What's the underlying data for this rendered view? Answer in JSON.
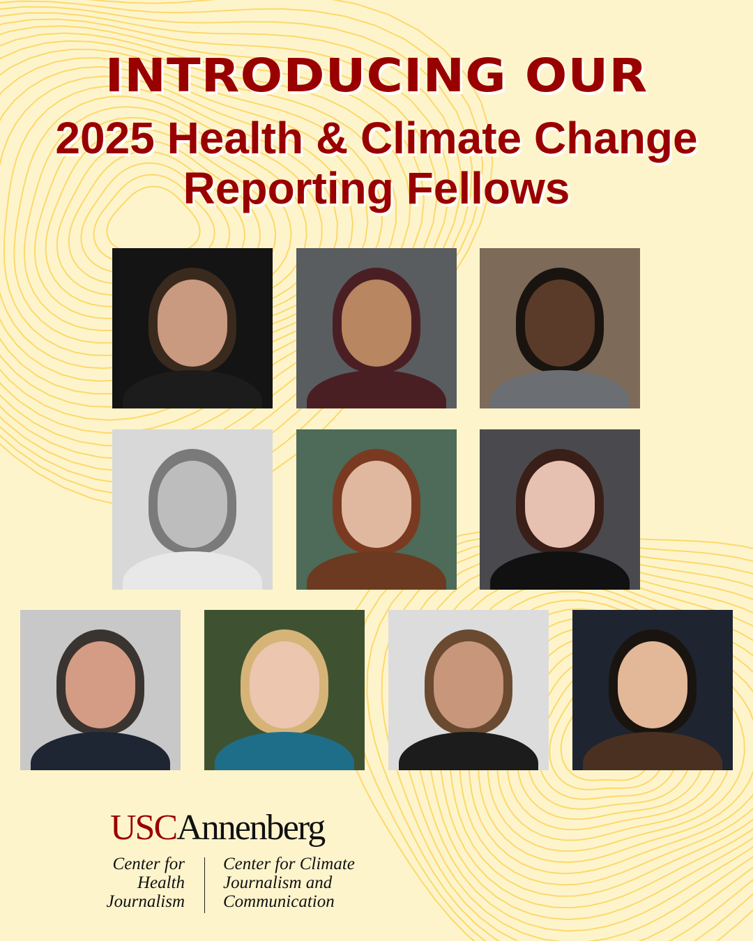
{
  "headline": "INTRODUCING OUR",
  "subtitle_line1": "2025 Health & Climate Change",
  "subtitle_line2": "Reporting Fellows",
  "colors": {
    "background": "#FEF4CC",
    "contour": "#FBD96A",
    "title": "#990000"
  },
  "fellows_photos": [
    {
      "bg": "#141414",
      "skin": "#c99a80",
      "hair": "#3a2a1e",
      "top": "#1c1c1c"
    },
    {
      "bg": "#5a5d60",
      "skin": "#b88660",
      "hair": "#4a1f24",
      "top": "#4a1f24"
    },
    {
      "bg": "#7d6a58",
      "skin": "#5a3a28",
      "hair": "#1a1410",
      "top": "#6b6e72"
    },
    {
      "bg": "#d8d8d8",
      "skin": "#bdbdbd",
      "hair": "#7a7a7a",
      "top": "#e8e8e8"
    },
    {
      "bg": "#4d6b58",
      "skin": "#e0b8a0",
      "hair": "#7a3a22",
      "top": "#6b3a20"
    },
    {
      "bg": "#4a4a4e",
      "skin": "#e6c0b0",
      "hair": "#3a1e18",
      "top": "#111111"
    },
    {
      "bg": "#c8c8c8",
      "skin": "#d49c84",
      "hair": "#3a3430",
      "top": "#1e2634"
    },
    {
      "bg": "#3e5232",
      "skin": "#ecc6ae",
      "hair": "#d6b478",
      "top": "#1e6e8a"
    },
    {
      "bg": "#dcdcdc",
      "skin": "#c8967a",
      "hair": "#6a4a30",
      "top": "#1c1c1c"
    },
    {
      "bg": "#1e2430",
      "skin": "#e2b898",
      "hair": "#1a1410",
      "top": "#4a3020"
    }
  ],
  "logo": {
    "usc": "USC",
    "annenberg": "Annenberg",
    "center_left": [
      "Center for",
      "Health",
      "Journalism"
    ],
    "center_right": [
      "Center for Climate",
      "Journalism and",
      "Communication"
    ]
  }
}
